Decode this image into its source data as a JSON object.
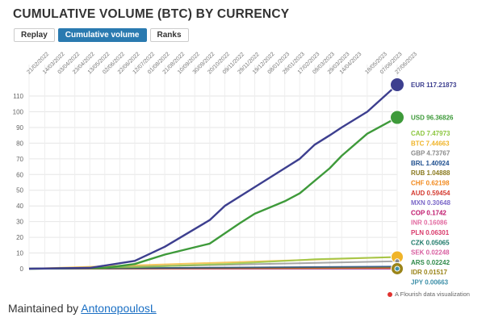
{
  "chart_title": "CUMULATIVE VOLUME (BTC) BY CURRENCY",
  "tabs": [
    {
      "label": "Replay",
      "active": false
    },
    {
      "label": "Cumulative volume",
      "active": true
    },
    {
      "label": "Ranks",
      "active": false
    }
  ],
  "attribution": "A Flourish data visualization",
  "footer": {
    "prefix": "Maintained by ",
    "link_text": "AntonopoulosL"
  },
  "chart_data": {
    "type": "line",
    "title": "CUMULATIVE VOLUME (BTC) BY CURRENCY",
    "x_ticks": [
      "21/02/2022",
      "14/03/2022",
      "03/04/2022",
      "23/04/2022",
      "13/05/2022",
      "02/06/2022",
      "22/06/2022",
      "12/07/2022",
      "01/08/2022",
      "21/08/2022",
      "10/09/2022",
      "30/09/2022",
      "20/10/2022",
      "09/11/2022",
      "29/11/2022",
      "19/12/2022",
      "08/01/2023",
      "28/01/2023",
      "17/02/2023",
      "09/03/2023",
      "29/03/2023",
      "14/04/2023",
      "18/05/2023",
      "07/06/2023",
      "27/06/2023"
    ],
    "y_ticks": [
      0,
      10,
      20,
      30,
      40,
      50,
      60,
      70,
      80,
      90,
      100,
      110
    ],
    "ylim": [
      0,
      117.22
    ],
    "grid": true,
    "series": [
      {
        "name": "EUR",
        "label_value": "117.21873",
        "color": "#3d3f8f",
        "x": [
          "21/02/2022",
          "13/05/2022",
          "12/07/2022",
          "21/08/2022",
          "20/10/2022",
          "09/11/2022",
          "19/12/2022",
          "28/01/2023",
          "17/02/2023",
          "09/03/2023",
          "29/03/2023",
          "14/04/2023",
          "18/05/2023",
          "27/06/2023"
        ],
        "y": [
          0,
          0.5,
          5,
          14,
          31,
          40,
          52,
          64,
          70,
          79,
          85,
          90,
          100,
          117.22
        ]
      },
      {
        "name": "USD",
        "label_value": "96.36826",
        "color": "#3e9a3a",
        "x": [
          "21/02/2022",
          "02/06/2022",
          "12/07/2022",
          "21/08/2022",
          "20/10/2022",
          "29/11/2022",
          "19/12/2022",
          "28/01/2023",
          "17/02/2023",
          "29/03/2023",
          "14/04/2023",
          "18/05/2023",
          "27/06/2023"
        ],
        "y": [
          0,
          0.5,
          3,
          9,
          16,
          29,
          35,
          43,
          48,
          64,
          72,
          86,
          96.37
        ]
      },
      {
        "name": "CAD",
        "label_value": "7.47973",
        "color": "#8cc63f",
        "x": [
          "21/02/2022",
          "12/07/2022",
          "09/11/2022",
          "09/03/2023",
          "27/06/2023"
        ],
        "y": [
          0,
          1,
          3,
          6,
          7.48
        ]
      },
      {
        "name": "BTC",
        "label_value": "7.44663",
        "color": "#f0b429",
        "x": [
          "21/02/2022",
          "27/06/2023"
        ],
        "y": [
          0,
          7.45
        ]
      },
      {
        "name": "GBP",
        "label_value": "4.73767",
        "color": "#8a8a8a",
        "x": [
          "21/02/2022",
          "27/06/2023"
        ],
        "y": [
          0,
          4.74
        ]
      },
      {
        "name": "BRL",
        "label_value": "1.40924",
        "color": "#1f4f8f",
        "x": [
          "21/02/2022",
          "27/06/2023"
        ],
        "y": [
          0,
          1.41
        ]
      },
      {
        "name": "RUB",
        "label_value": "1.04888",
        "color": "#8a7a1f",
        "x": [
          "21/02/2022",
          "27/06/2023"
        ],
        "y": [
          0,
          1.05
        ]
      },
      {
        "name": "CHF",
        "label_value": "0.62198",
        "color": "#f28a1e",
        "x": [
          "21/02/2022",
          "27/06/2023"
        ],
        "y": [
          0,
          0.62
        ]
      },
      {
        "name": "AUD",
        "label_value": "0.59454",
        "color": "#d43a2f",
        "x": [
          "21/02/2022",
          "27/06/2023"
        ],
        "y": [
          0,
          0.59
        ]
      },
      {
        "name": "MXN",
        "label_value": "0.30648",
        "color": "#7b68c8",
        "x": [
          "21/02/2022",
          "27/06/2023"
        ],
        "y": [
          0,
          0.31
        ]
      },
      {
        "name": "COP",
        "label_value": "0.1742",
        "color": "#c0186d",
        "x": [
          "21/02/2022",
          "27/06/2023"
        ],
        "y": [
          0,
          0.17
        ]
      },
      {
        "name": "INR",
        "label_value": "0.16086",
        "color": "#e26aa0",
        "x": [
          "21/02/2022",
          "27/06/2023"
        ],
        "y": [
          0,
          0.16
        ]
      },
      {
        "name": "PLN",
        "label_value": "0.06301",
        "color": "#d9396a",
        "x": [
          "21/02/2022",
          "27/06/2023"
        ],
        "y": [
          0,
          0.06
        ]
      },
      {
        "name": "CZK",
        "label_value": "0.05065",
        "color": "#1f7a6a",
        "x": [
          "21/02/2022",
          "27/06/2023"
        ],
        "y": [
          0,
          0.05
        ]
      },
      {
        "name": "SEK",
        "label_value": "0.02248",
        "color": "#d85fa0",
        "x": [
          "21/02/2022",
          "27/06/2023"
        ],
        "y": [
          0,
          0.02
        ]
      },
      {
        "name": "ARS",
        "label_value": "0.02242",
        "color": "#2f8a4a",
        "x": [
          "21/02/2022",
          "27/06/2023"
        ],
        "y": [
          0,
          0.02
        ]
      },
      {
        "name": "IDR",
        "label_value": "0.01517",
        "color": "#9a8419",
        "x": [
          "21/02/2022",
          "27/06/2023"
        ],
        "y": [
          0,
          0.02
        ]
      },
      {
        "name": "JPY",
        "label_value": "0.00663",
        "color": "#3c8fa8",
        "x": [
          "21/02/2022",
          "27/06/2023"
        ],
        "y": [
          0,
          0.01
        ]
      }
    ]
  }
}
